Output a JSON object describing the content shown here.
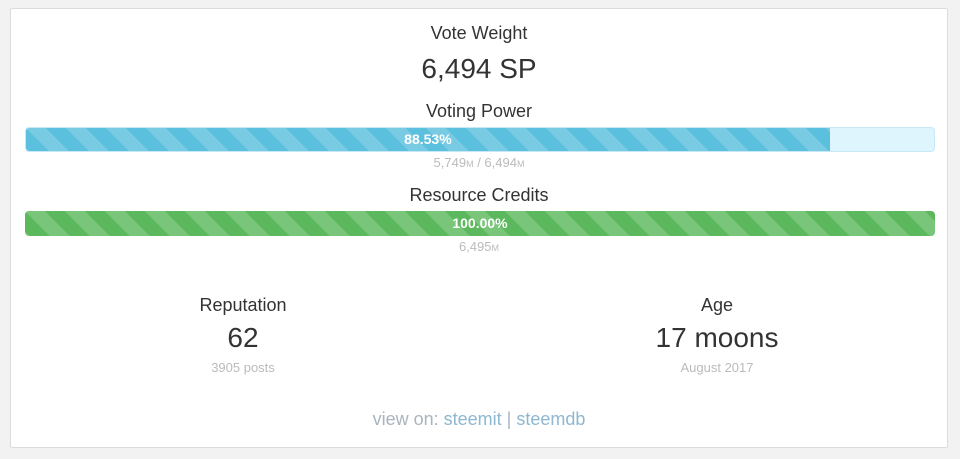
{
  "vote_weight": {
    "label": "Vote Weight",
    "value": "6,494 SP"
  },
  "voting_power": {
    "label": "Voting Power",
    "percent_text": "88.53%",
    "percent": 88.53,
    "current": "5,749",
    "current_unit": "M",
    "separator": " / ",
    "max": "6,494",
    "max_unit": "M",
    "bar_color": "#5bc0de"
  },
  "resource_credits": {
    "label": "Resource Credits",
    "percent_text": "100.00%",
    "percent": 100,
    "value": "6,495",
    "value_unit": "M",
    "bar_color": "#5cb85c"
  },
  "reputation": {
    "label": "Reputation",
    "value": "62",
    "sub": "3905 posts"
  },
  "age": {
    "label": "Age",
    "value": "17 moons",
    "sub": "August 2017"
  },
  "footer": {
    "prefix": "view on: ",
    "link1": "steemit",
    "divider": " | ",
    "link2": "steemdb"
  }
}
